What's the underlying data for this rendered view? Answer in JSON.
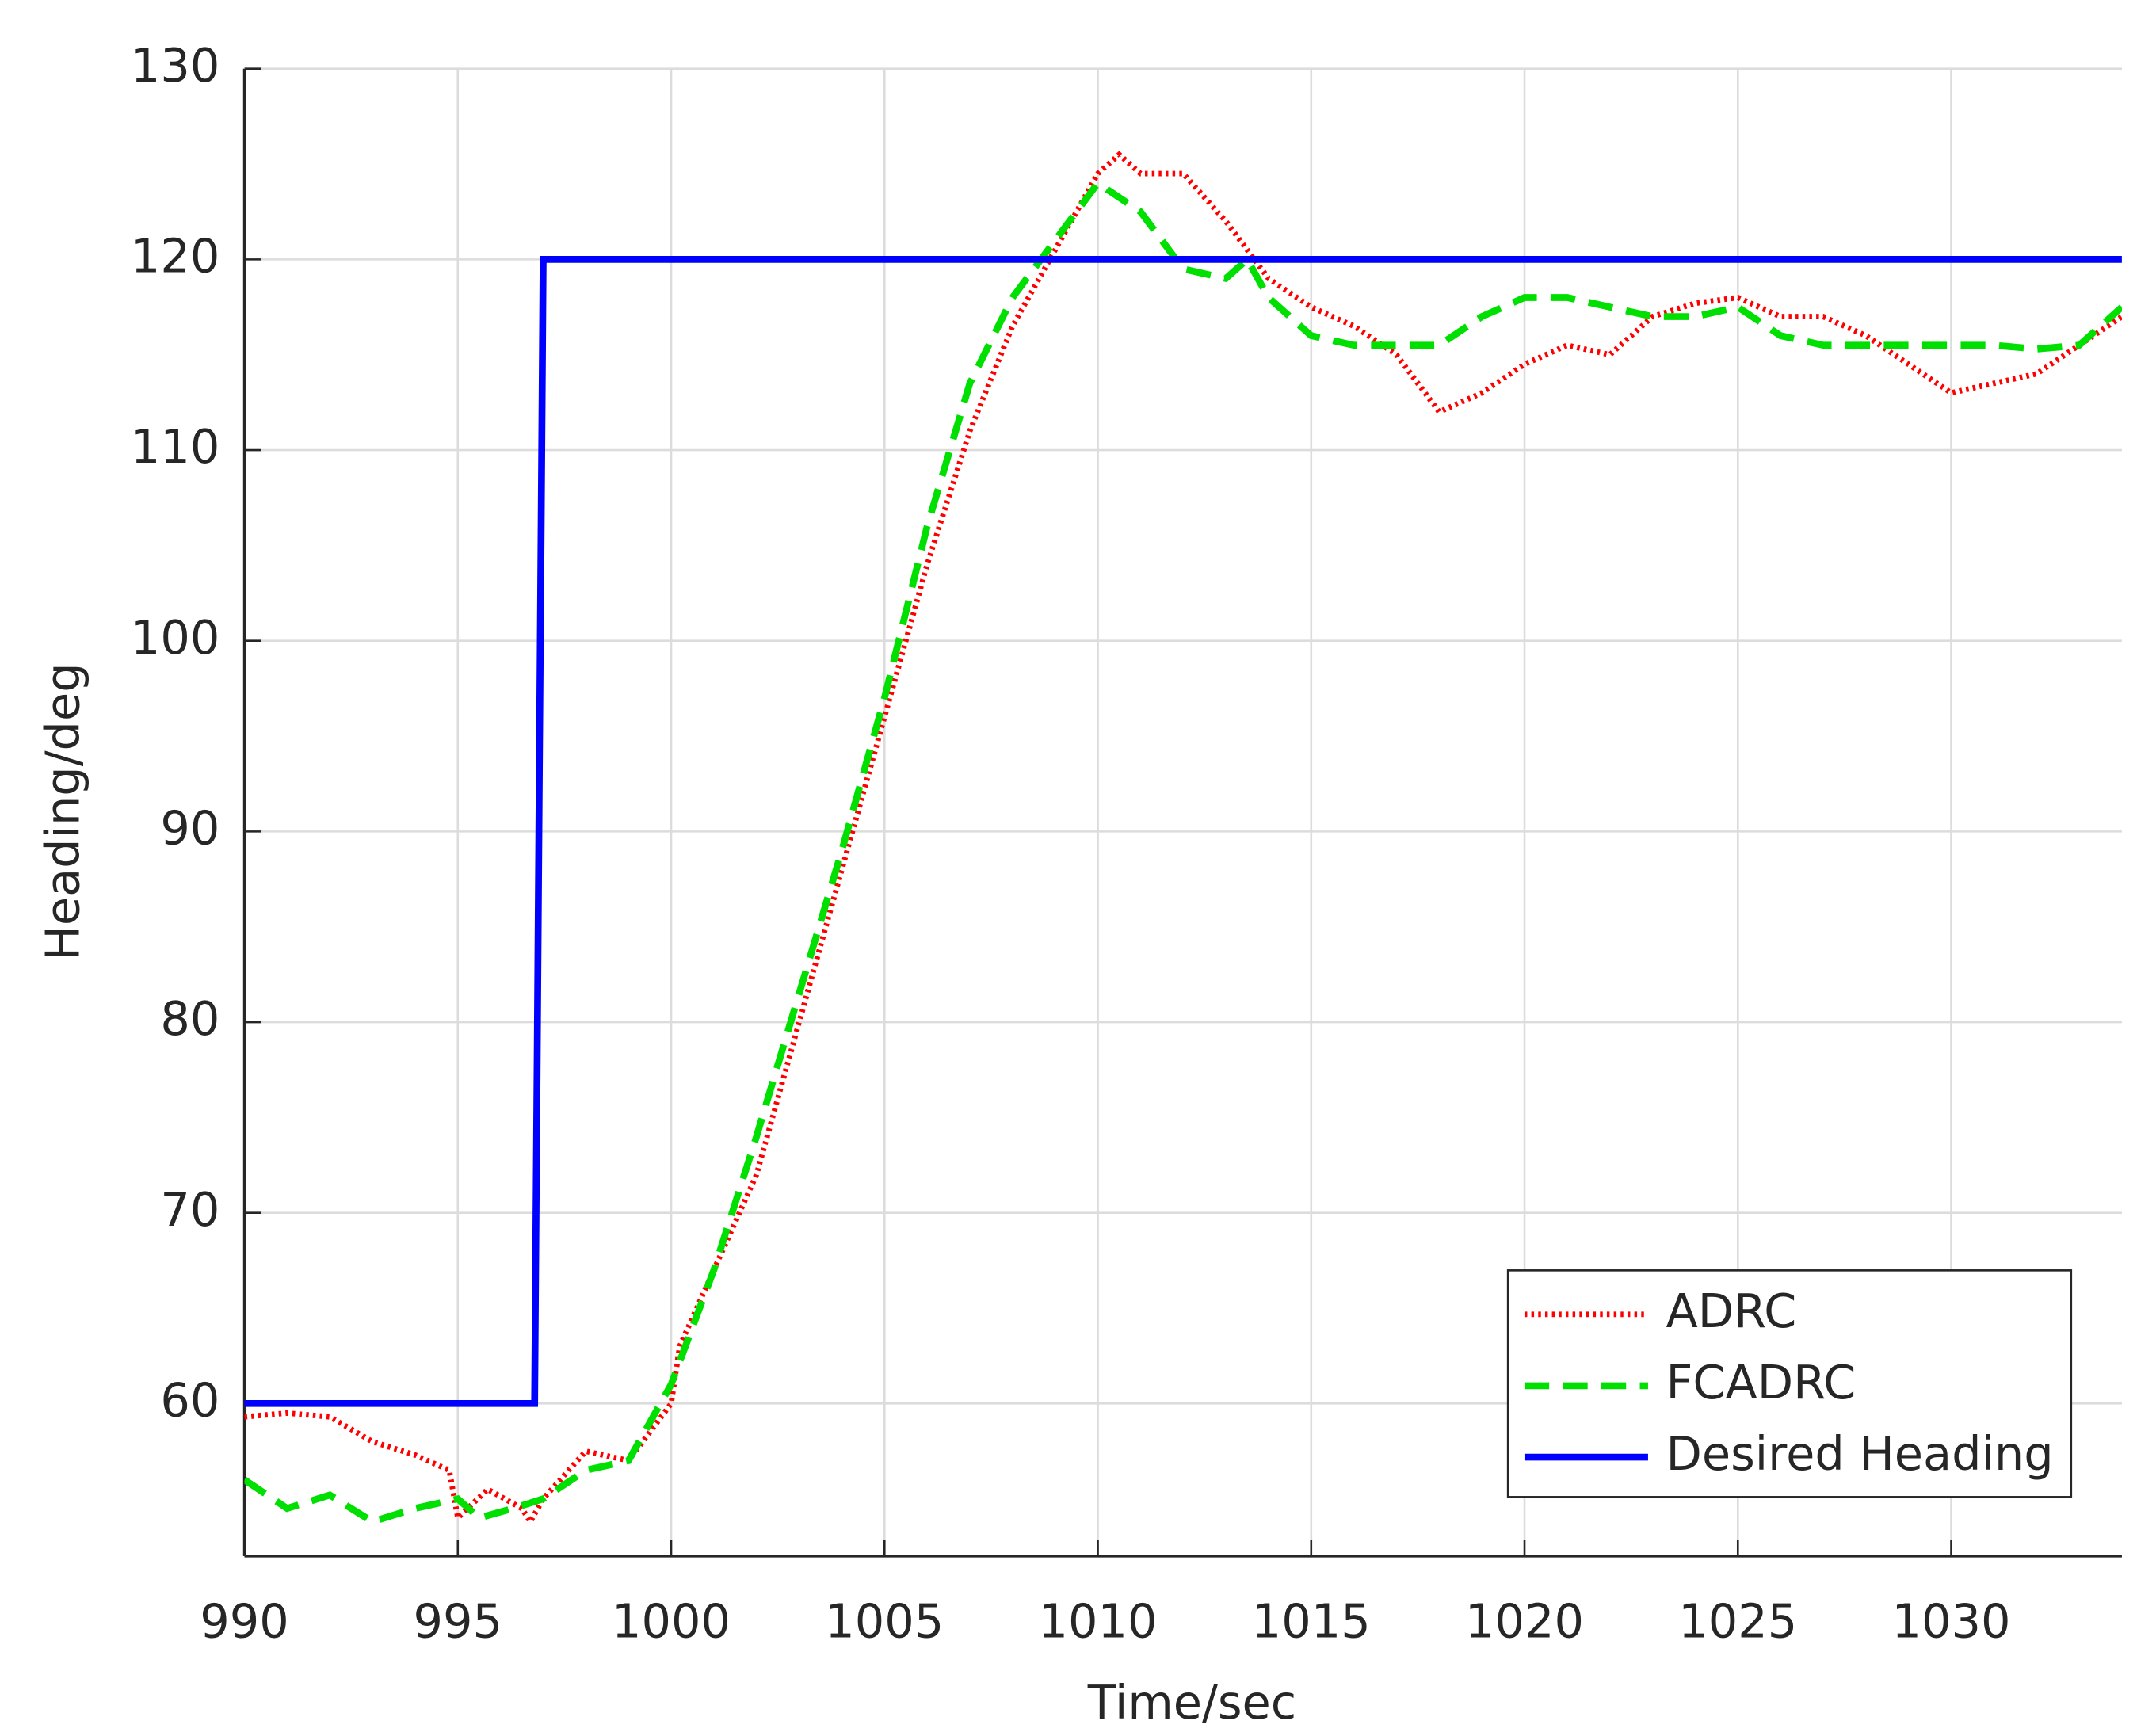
{
  "chart_data": {
    "type": "line",
    "x_label": "Time/sec",
    "y_label": "Heading/deg",
    "xlim": [
      990,
      1034
    ],
    "ylim": [
      52,
      130
    ],
    "xticks": [
      990,
      995,
      1000,
      1005,
      1010,
      1015,
      1020,
      1025,
      1030
    ],
    "yticks": [
      60,
      70,
      80,
      90,
      100,
      110,
      120,
      130
    ],
    "grid": true,
    "legend": "lower right",
    "series": [
      {
        "name": "ADRC",
        "color": "#ff0000",
        "line_style": "dotted",
        "x": [
          990,
          991,
          992,
          993,
          994,
          994.8,
          995,
          995.7,
          996.5,
          996.7,
          997,
          998,
          999,
          1000,
          1000.2,
          1001,
          1002,
          1003,
          1004,
          1005,
          1006,
          1007,
          1008,
          1009,
          1010,
          1010.5,
          1011,
          1012,
          1013,
          1014,
          1015,
          1016,
          1017,
          1018,
          1019,
          1020,
          1021,
          1022,
          1023,
          1024,
          1025,
          1026,
          1027,
          1028,
          1029,
          1030,
          1031,
          1032,
          1033,
          1034
        ],
        "values": [
          59.3,
          59.5,
          59.3,
          58,
          57.3,
          56.5,
          54,
          55.5,
          54.5,
          53.8,
          55,
          57.5,
          57,
          60,
          63,
          67,
          72,
          80,
          88,
          96,
          104,
          111,
          116.5,
          120.5,
          124.5,
          125.5,
          124.5,
          124.5,
          122,
          119,
          117.5,
          116.5,
          115,
          112,
          113,
          114.5,
          115.5,
          115,
          117,
          117.7,
          118,
          117,
          117,
          116,
          114.5,
          113,
          113.5,
          114,
          115.5,
          117
        ]
      },
      {
        "name": "FCADRC",
        "color": "#00e000",
        "line_style": "dashed",
        "x": [
          990,
          991,
          992,
          993,
          994,
          995,
          995.5,
          996.3,
          997,
          998,
          999,
          1000,
          1001,
          1002,
          1003,
          1004,
          1005,
          1006,
          1007,
          1008,
          1009,
          1010,
          1011,
          1012,
          1013,
          1013.5,
          1014,
          1015,
          1016,
          1017,
          1018,
          1019,
          1020,
          1021,
          1022,
          1023,
          1024,
          1025,
          1026,
          1027,
          1028,
          1029,
          1030,
          1031,
          1032,
          1033,
          1034
        ],
        "values": [
          56,
          54.5,
          55.2,
          53.8,
          54.5,
          55,
          54,
          54.5,
          55,
          56.5,
          57,
          61,
          67,
          74,
          81.5,
          89,
          97,
          106,
          113.5,
          118,
          121,
          124,
          122.5,
          119.5,
          119,
          120,
          118,
          116,
          115.5,
          115.5,
          115.5,
          117,
          118,
          118,
          117.5,
          117,
          117,
          117.5,
          116,
          115.5,
          115.5,
          115.5,
          115.5,
          115.5,
          115.3,
          115.5,
          117.5
        ]
      },
      {
        "name": "Desired Heading",
        "color": "#0000ff",
        "line_style": "solid",
        "x": [
          990,
          996.8,
          997,
          1034
        ],
        "values": [
          60,
          60,
          120,
          120
        ]
      }
    ]
  }
}
